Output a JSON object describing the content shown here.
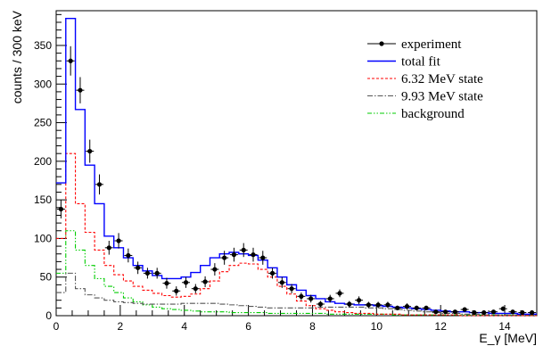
{
  "chart_data": {
    "type": "line",
    "xlabel": "E_γ [MeV]",
    "ylabel": "counts / 300 keV",
    "xlim": [
      0,
      15
    ],
    "ylim": [
      0,
      395
    ],
    "bin_width": 0.3,
    "x_ticks": [
      0,
      2,
      4,
      6,
      8,
      10,
      12,
      14
    ],
    "y_ticks": [
      0,
      50,
      100,
      150,
      200,
      250,
      300,
      350
    ],
    "legend_position": "top-right",
    "legend": [
      {
        "key": "experiment",
        "label": "experiment",
        "color": "#000000",
        "style": "marker"
      },
      {
        "key": "total",
        "label": "total fit",
        "color": "#0000ff",
        "style": "solid"
      },
      {
        "key": "s632",
        "label": "6.32 MeV state",
        "color": "#ff0000",
        "style": "dashed"
      },
      {
        "key": "s993",
        "label": "9.93 MeV state",
        "color": "#555555",
        "style": "dashdot"
      },
      {
        "key": "bkg",
        "label": "background",
        "color": "#00cc00",
        "style": "dashdotdot"
      }
    ],
    "experiment": {
      "x": [
        0.15,
        0.45,
        0.75,
        1.05,
        1.35,
        1.65,
        1.95,
        2.25,
        2.55,
        2.85,
        3.15,
        3.45,
        3.75,
        4.05,
        4.35,
        4.65,
        4.95,
        5.25,
        5.55,
        5.85,
        6.15,
        6.45,
        6.75,
        7.05,
        7.35,
        7.65,
        7.95,
        8.25,
        8.55,
        8.85,
        9.15,
        9.45,
        9.75,
        10.05,
        10.35,
        10.65,
        10.95,
        11.25,
        11.55,
        11.85,
        12.15,
        12.45,
        12.75,
        13.05,
        13.35,
        13.65,
        13.95,
        14.25,
        14.55,
        14.85
      ],
      "y": [
        138,
        330,
        292,
        213,
        170,
        88,
        97,
        78,
        62,
        55,
        55,
        42,
        32,
        43,
        35,
        44,
        60,
        75,
        79,
        85,
        79,
        75,
        55,
        43,
        35,
        25,
        22,
        15,
        22,
        29,
        15,
        20,
        14,
        14,
        14,
        10,
        12,
        10,
        10,
        5,
        5,
        5,
        8,
        4,
        4,
        5,
        9,
        5,
        4,
        4
      ],
      "err": [
        12,
        19,
        17,
        15,
        13,
        9,
        10,
        9,
        8,
        7,
        7,
        7,
        6,
        7,
        6,
        7,
        8,
        9,
        9,
        9,
        9,
        9,
        7,
        7,
        6,
        5,
        5,
        4,
        5,
        5,
        4,
        5,
        4,
        4,
        4,
        3,
        4,
        3,
        3,
        2,
        2,
        2,
        3,
        2,
        2,
        2,
        3,
        2,
        2,
        2
      ]
    },
    "series": [
      {
        "key": "total",
        "name": "total fit",
        "y": [
          172,
          385,
          267,
          195,
          145,
          103,
          88,
          75,
          65,
          58,
          52,
          48,
          48,
          50,
          56,
          65,
          75,
          80,
          82,
          80,
          78,
          72,
          62,
          50,
          40,
          33,
          26,
          22,
          18,
          16,
          15,
          14,
          14,
          13,
          12,
          11,
          10,
          9,
          8,
          7,
          6,
          5,
          5,
          4,
          4,
          3,
          3,
          3,
          2,
          2
        ]
      },
      {
        "key": "s632",
        "name": "6.32 MeV state",
        "y": [
          100,
          210,
          145,
          108,
          85,
          65,
          53,
          45,
          38,
          33,
          29,
          26,
          24,
          25,
          28,
          35,
          45,
          57,
          65,
          68,
          67,
          60,
          50,
          38,
          28,
          19,
          13,
          9,
          7,
          5,
          4,
          3,
          3,
          2,
          2,
          2,
          1,
          1,
          1,
          1,
          1,
          1,
          0,
          0,
          0,
          0,
          0,
          0,
          0,
          0
        ]
      },
      {
        "key": "s993",
        "name": "9.93 MeV state",
        "y": [
          30,
          55,
          35,
          27,
          23,
          20,
          18,
          17,
          16,
          15,
          15,
          15,
          15,
          16,
          16,
          16,
          16,
          15,
          14,
          13,
          12,
          11,
          10,
          10,
          10,
          10,
          10,
          11,
          11,
          11,
          11,
          11,
          10,
          10,
          9,
          8,
          7,
          6,
          5,
          4,
          3,
          3,
          2,
          2,
          1,
          1,
          1,
          1,
          1,
          1
        ]
      },
      {
        "key": "bkg",
        "name": "background",
        "y": [
          55,
          110,
          85,
          65,
          48,
          38,
          30,
          23,
          18,
          14,
          11,
          9,
          8,
          7,
          6,
          5,
          5,
          5,
          4,
          4,
          4,
          4,
          3,
          3,
          3,
          3,
          3,
          3,
          2,
          2,
          2,
          2,
          2,
          2,
          2,
          1,
          1,
          1,
          1,
          1,
          1,
          1,
          1,
          1,
          1,
          1,
          1,
          1,
          1,
          1
        ]
      }
    ]
  }
}
